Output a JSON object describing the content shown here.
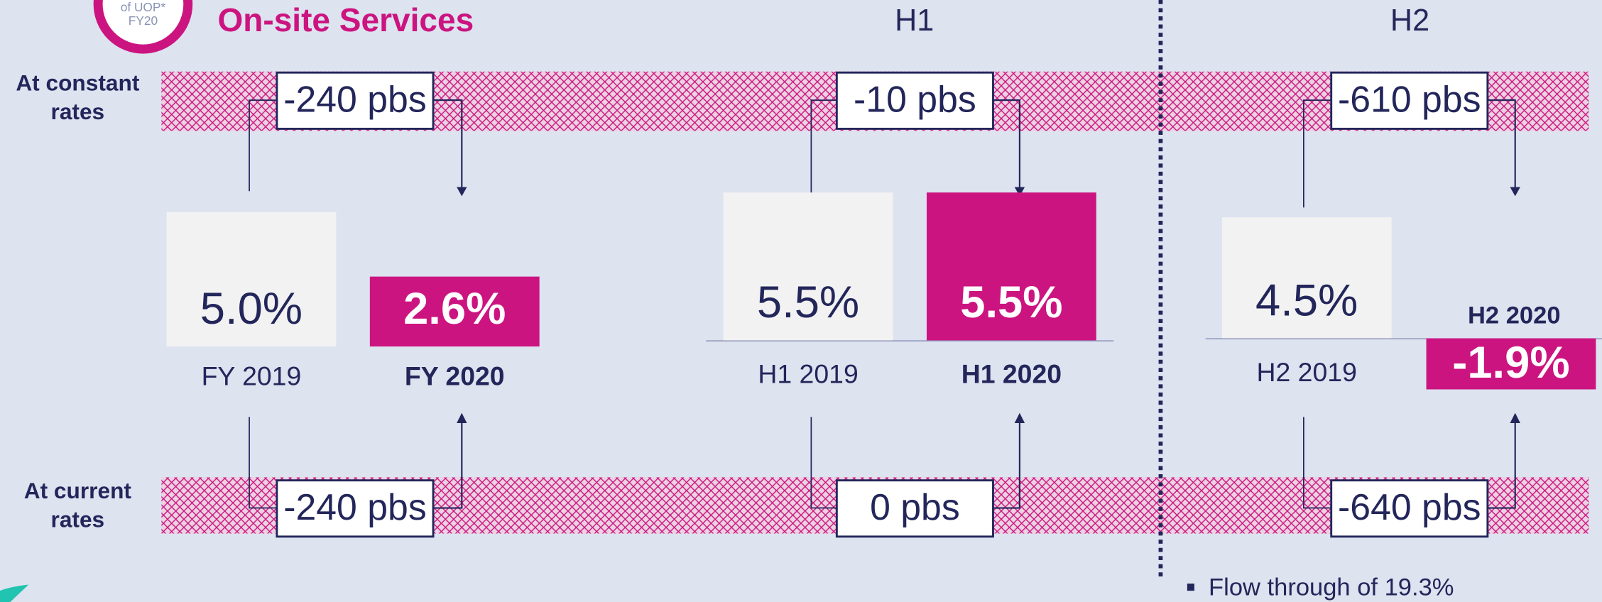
{
  "title": "On-site Services",
  "badge": [
    "of UOP*",
    "FY20"
  ],
  "row_labels": {
    "constant": "At constant rates",
    "current": "At current rates"
  },
  "headings": [
    "H1",
    "H2"
  ],
  "groups": [
    {
      "bars": [
        {
          "label": "FY 2019",
          "value": 5.0,
          "value_label": "5.0%",
          "highlight": false
        },
        {
          "label": "FY 2020",
          "value": 2.6,
          "value_label": "2.6%",
          "highlight": true
        }
      ],
      "constant": "-240 pbs",
      "current": "-240 pbs"
    },
    {
      "bars": [
        {
          "label": "H1 2019",
          "value": 5.5,
          "value_label": "5.5%",
          "highlight": false
        },
        {
          "label": "H1 2020",
          "value": 5.5,
          "value_label": "5.5%",
          "highlight": true
        }
      ],
      "constant": "-10 pbs",
      "current": "0 pbs"
    },
    {
      "bars": [
        {
          "label": "H2 2019",
          "value": 4.5,
          "value_label": "4.5%",
          "highlight": false
        },
        {
          "label": "H2 2020",
          "value": -1.9,
          "value_label": "-1.9%",
          "highlight": true
        }
      ],
      "constant": "-610 pbs",
      "current": "-640 pbs"
    }
  ],
  "bullet": "Flow through of 19.3%"
}
